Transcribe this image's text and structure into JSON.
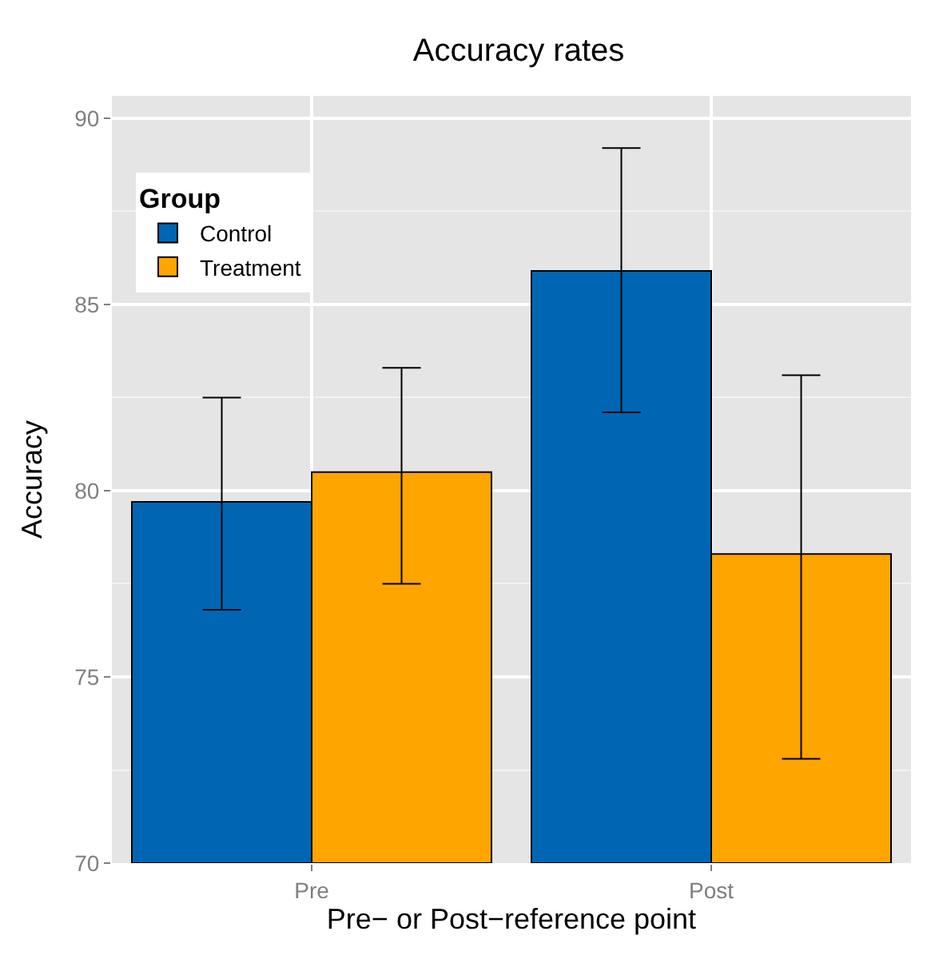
{
  "chart_data": {
    "type": "bar",
    "title": "Accuracy rates",
    "xlabel": "Pre− or Post−reference point",
    "ylabel": "Accuracy",
    "legend_title": "Group",
    "categories": [
      "Pre",
      "Post"
    ],
    "series": [
      {
        "name": "Control",
        "color": "#0066b3",
        "values": [
          79.7,
          85.9
        ],
        "errors": [
          [
            76.8,
            82.5
          ],
          [
            82.1,
            89.2
          ]
        ]
      },
      {
        "name": "Treatment",
        "color": "#ffa500",
        "values": [
          80.5,
          78.3
        ],
        "errors": [
          [
            77.5,
            83.3
          ],
          [
            72.8,
            83.1
          ]
        ]
      }
    ],
    "ylim": [
      70,
      90.6
    ],
    "yticks": [
      70,
      75,
      80,
      85,
      90
    ],
    "grid": true,
    "legend": "top left"
  }
}
